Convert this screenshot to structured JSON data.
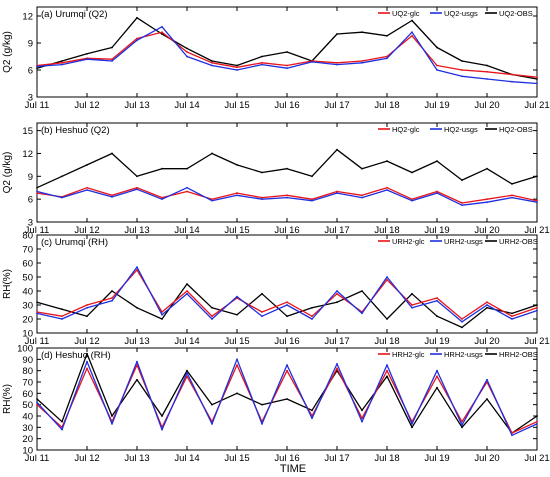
{
  "figure": {
    "xlabel": "TIME",
    "colors": {
      "glc": "#e8141b",
      "usgs": "#1f2fe0",
      "obs": "#000000",
      "axis": "#000000"
    }
  },
  "chart_data": [
    {
      "type": "line",
      "title": "(a) Urumqi (Q2)",
      "ylabel": "Q2 (g/kg)",
      "xlim": [
        0,
        10
      ],
      "ylim": [
        3,
        13
      ],
      "yticks": [
        3,
        6,
        9,
        12
      ],
      "xtick_labels": [
        "Jul 11",
        "Jul 12",
        "Jul 13",
        "Jul 14",
        "Jul 15",
        "Jul 16",
        "Jul 17",
        "Jul 18",
        "Jul 19",
        "Jul 20",
        "Jul 21"
      ],
      "legend_position": "top-right",
      "x": [
        0,
        0.5,
        1,
        1.5,
        2,
        2.5,
        3,
        3.5,
        4,
        4.5,
        5,
        5.5,
        6,
        6.5,
        7,
        7.5,
        8,
        8.5,
        9,
        9.5,
        10
      ],
      "series": [
        {
          "name": "UQ2-glc",
          "color": "#e8141b",
          "values": [
            6.5,
            6.8,
            7.3,
            7.2,
            9.5,
            10.2,
            8.0,
            6.8,
            6.3,
            6.8,
            6.5,
            7.0,
            6.8,
            7.0,
            7.5,
            9.8,
            6.5,
            6.0,
            5.8,
            5.5,
            5.2
          ]
        },
        {
          "name": "UQ2-usgs",
          "color": "#1f2fe0",
          "values": [
            6.4,
            6.6,
            7.2,
            7.0,
            9.3,
            10.8,
            7.5,
            6.5,
            6.0,
            6.6,
            6.2,
            6.9,
            6.6,
            6.8,
            7.3,
            10.2,
            6.0,
            5.3,
            5.0,
            4.7,
            4.5
          ]
        },
        {
          "name": "UQ2-OBS",
          "color": "#000000",
          "values": [
            6.2,
            7.0,
            7.8,
            8.5,
            11.8,
            10.0,
            8.4,
            7.0,
            6.5,
            7.5,
            8.0,
            7.0,
            10.0,
            10.2,
            9.8,
            11.5,
            8.5,
            7.0,
            6.5,
            5.5,
            5.0
          ]
        }
      ]
    },
    {
      "type": "line",
      "title": "(b) Heshuo (Q2)",
      "ylabel": "Q2 (g/kg)",
      "xlim": [
        0,
        10
      ],
      "ylim": [
        3,
        16
      ],
      "yticks": [
        3,
        6,
        9,
        12,
        15
      ],
      "xtick_labels": [
        "Jul 11",
        "Jul 12",
        "Jul 13",
        "Jul 14",
        "Jul 15",
        "Jul 16",
        "Jul 17",
        "Jul 18",
        "Jul 19",
        "Jul 20",
        "Jul 21"
      ],
      "legend_position": "top-right",
      "x": [
        0,
        0.5,
        1,
        1.5,
        2,
        2.5,
        3,
        3.5,
        4,
        4.5,
        5,
        5.5,
        6,
        6.5,
        7,
        7.5,
        8,
        8.5,
        9,
        9.5,
        10
      ],
      "series": [
        {
          "name": "HQ2-glc",
          "color": "#e8141b",
          "values": [
            6.8,
            6.3,
            7.5,
            6.5,
            7.5,
            6.2,
            7.0,
            6.0,
            6.8,
            6.2,
            6.5,
            6.0,
            7.0,
            6.5,
            7.5,
            6.0,
            7.0,
            5.5,
            6.0,
            6.5,
            5.8
          ]
        },
        {
          "name": "HQ2-usgs",
          "color": "#1f2fe0",
          "values": [
            7.0,
            6.2,
            7.2,
            6.3,
            7.3,
            6.0,
            7.5,
            5.8,
            6.5,
            6.0,
            6.2,
            5.8,
            6.8,
            6.2,
            7.2,
            5.8,
            6.8,
            5.2,
            5.6,
            6.2,
            5.6
          ]
        },
        {
          "name": "HQ2-OBS",
          "color": "#000000",
          "values": [
            7.5,
            9.0,
            10.5,
            12.0,
            9.0,
            10.0,
            10.0,
            12.0,
            10.5,
            9.5,
            10.0,
            9.0,
            12.5,
            10.0,
            11.0,
            9.5,
            11.0,
            8.5,
            10.0,
            8.0,
            9.0
          ]
        }
      ]
    },
    {
      "type": "line",
      "title": "(c) Urumqi (RH)",
      "ylabel": "RH(%)",
      "xlim": [
        0,
        10
      ],
      "ylim": [
        10,
        80
      ],
      "yticks": [
        10,
        20,
        30,
        40,
        50,
        60,
        70,
        80
      ],
      "xtick_labels": [
        "Jul 11",
        "Jul 12",
        "Jul 13",
        "Jul 14",
        "Jul 15",
        "Jul 16",
        "Jul 17",
        "Jul 18",
        "Jul 19",
        "Jul 20",
        "Jul 21"
      ],
      "legend_position": "top-right",
      "x": [
        0,
        0.5,
        1,
        1.5,
        2,
        2.5,
        3,
        3.5,
        4,
        4.5,
        5,
        5.5,
        6,
        6.5,
        7,
        7.5,
        8,
        8.5,
        9,
        9.5,
        10
      ],
      "series": [
        {
          "name": "URH2-glc",
          "color": "#e8141b",
          "values": [
            25,
            22,
            30,
            35,
            55,
            25,
            40,
            22,
            35,
            25,
            32,
            22,
            38,
            25,
            48,
            30,
            35,
            20,
            32,
            22,
            28
          ]
        },
        {
          "name": "URH2-usgs",
          "color": "#1f2fe0",
          "values": [
            24,
            20,
            28,
            33,
            57,
            23,
            38,
            20,
            36,
            22,
            30,
            20,
            40,
            24,
            50,
            28,
            33,
            18,
            30,
            20,
            26
          ]
        },
        {
          "name": "URH2-OBS",
          "color": "#000000",
          "values": [
            32,
            27,
            22,
            40,
            28,
            20,
            45,
            28,
            23,
            38,
            22,
            28,
            32,
            40,
            20,
            38,
            22,
            14,
            28,
            24,
            30
          ]
        }
      ]
    },
    {
      "type": "line",
      "title": "(d) Heshuo (RH)",
      "ylabel": "RH(%)",
      "xlim": [
        0,
        10
      ],
      "ylim": [
        10,
        100
      ],
      "yticks": [
        10,
        20,
        30,
        40,
        50,
        60,
        70,
        80,
        90,
        100
      ],
      "xtick_labels": [
        "Jul 11",
        "Jul 12",
        "Jul 13",
        "Jul 14",
        "Jul 15",
        "Jul 16",
        "Jul 17",
        "Jul 18",
        "Jul 19",
        "Jul 20",
        "Jul 21"
      ],
      "legend_position": "top-right",
      "x": [
        0,
        0.5,
        1,
        1.5,
        2,
        2.5,
        3,
        3.5,
        4,
        4.5,
        5,
        5.5,
        6,
        6.5,
        7,
        7.5,
        8,
        8.5,
        9,
        9.5,
        10
      ],
      "series": [
        {
          "name": "HRH2-glc",
          "color": "#e8141b",
          "values": [
            50,
            30,
            82,
            35,
            85,
            30,
            75,
            35,
            85,
            35,
            80,
            40,
            82,
            38,
            80,
            35,
            75,
            35,
            70,
            25,
            35
          ]
        },
        {
          "name": "HRH2-usgs",
          "color": "#1f2fe0",
          "values": [
            52,
            28,
            88,
            33,
            88,
            28,
            78,
            33,
            90,
            33,
            85,
            38,
            86,
            35,
            85,
            33,
            80,
            32,
            72,
            23,
            33
          ]
        },
        {
          "name": "HRH2-OBS",
          "color": "#000000",
          "values": [
            55,
            35,
            95,
            40,
            72,
            40,
            80,
            50,
            60,
            50,
            55,
            45,
            80,
            45,
            75,
            30,
            65,
            30,
            55,
            25,
            40
          ]
        }
      ]
    }
  ]
}
